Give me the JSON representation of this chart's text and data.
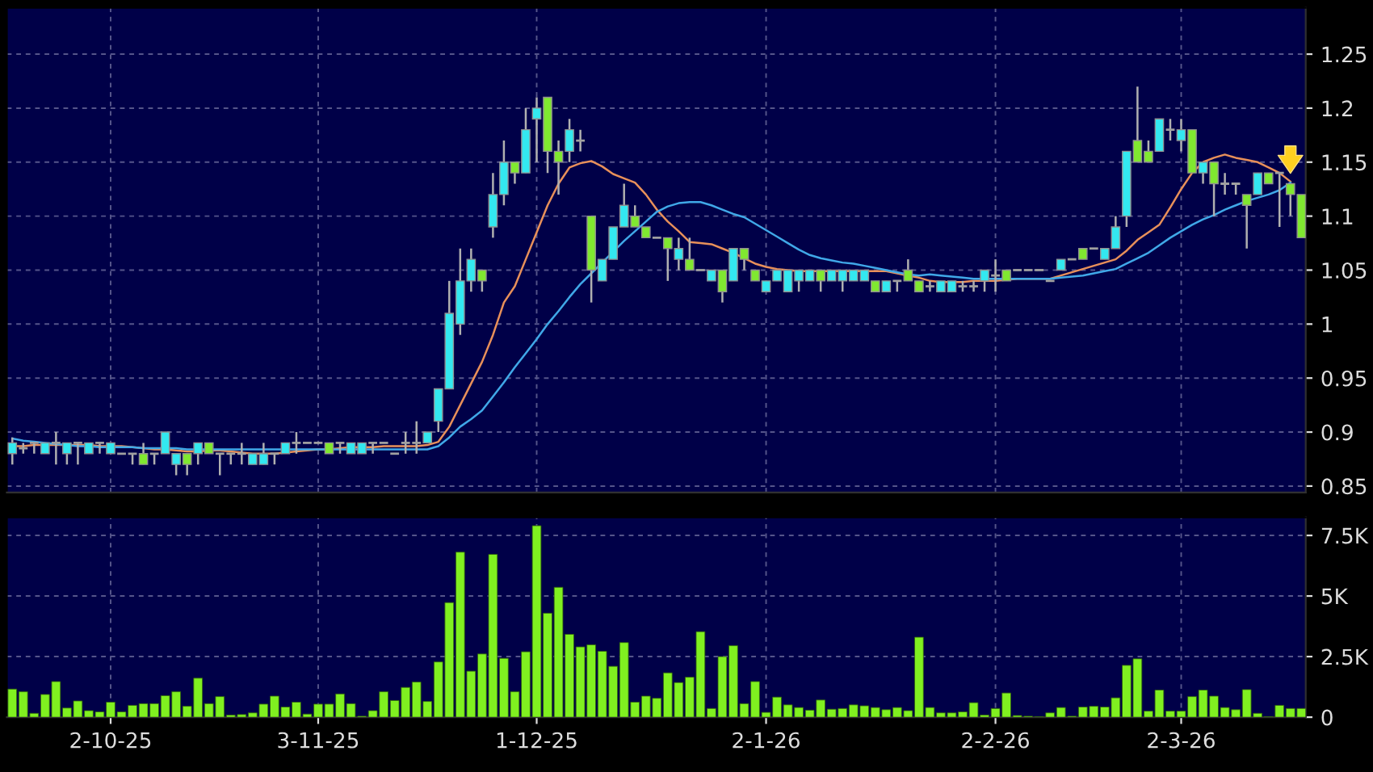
{
  "chart_data": [
    {
      "type": "candlestick",
      "categories": [
        null,
        null,
        null,
        null,
        null,
        null,
        null,
        null,
        null,
        null,
        null,
        null,
        null,
        null,
        null,
        null,
        null,
        null,
        null,
        null,
        null,
        null,
        null,
        null,
        null,
        null,
        null,
        null,
        null,
        null,
        null,
        null,
        null,
        null,
        null,
        null,
        null,
        null,
        null,
        null,
        null,
        null,
        null,
        null,
        null,
        null,
        null,
        null,
        null,
        null,
        null,
        null,
        null,
        null,
        null,
        null,
        null,
        null,
        null,
        null,
        null,
        null,
        null,
        null,
        null,
        null,
        null,
        null,
        null,
        null,
        null,
        null,
        null,
        null,
        null,
        null,
        null,
        null,
        null,
        null,
        null,
        null,
        null,
        null,
        null,
        null,
        null,
        null,
        null,
        null,
        null,
        null,
        null,
        null,
        null,
        null,
        null,
        null,
        null,
        null,
        null,
        null,
        null,
        null,
        null,
        null,
        null,
        null,
        null,
        null,
        null,
        null,
        null,
        null,
        null,
        null,
        null,
        null,
        null
      ],
      "ohlc": [
        [
          0.88,
          0.895,
          0.87,
          0.89
        ],
        [
          0.885,
          0.89,
          0.88,
          0.885
        ],
        [
          0.89,
          0.89,
          0.88,
          0.89
        ],
        [
          0.88,
          0.89,
          0.88,
          0.89
        ],
        [
          0.89,
          0.9,
          0.87,
          0.89
        ],
        [
          0.88,
          0.89,
          0.87,
          0.89
        ],
        [
          0.89,
          0.89,
          0.87,
          0.89
        ],
        [
          0.88,
          0.89,
          0.88,
          0.89
        ],
        [
          0.89,
          0.89,
          0.88,
          0.89
        ],
        [
          0.88,
          0.89,
          0.88,
          0.89
        ],
        [
          0.88,
          0.88,
          0.88,
          0.88
        ],
        [
          0.88,
          0.88,
          0.87,
          0.88
        ],
        [
          0.88,
          0.89,
          0.87,
          0.87
        ],
        [
          0.88,
          0.88,
          0.87,
          0.88
        ],
        [
          0.88,
          0.9,
          0.88,
          0.9
        ],
        [
          0.87,
          0.88,
          0.86,
          0.88
        ],
        [
          0.88,
          0.88,
          0.86,
          0.87
        ],
        [
          0.88,
          0.89,
          0.87,
          0.89
        ],
        [
          0.89,
          0.89,
          0.88,
          0.88
        ],
        [
          0.88,
          0.88,
          0.86,
          0.88
        ],
        [
          0.88,
          0.88,
          0.87,
          0.88
        ],
        [
          0.88,
          0.89,
          0.87,
          0.88
        ],
        [
          0.87,
          0.88,
          0.87,
          0.88
        ],
        [
          0.87,
          0.89,
          0.87,
          0.88
        ],
        [
          0.88,
          0.88,
          0.87,
          0.88
        ],
        [
          0.88,
          0.89,
          0.88,
          0.89
        ],
        [
          0.89,
          0.9,
          0.88,
          0.89
        ],
        [
          0.89,
          0.89,
          0.89,
          0.89
        ],
        [
          0.89,
          0.89,
          0.89,
          0.89
        ],
        [
          0.89,
          0.89,
          0.88,
          0.88
        ],
        [
          0.89,
          0.89,
          0.88,
          0.89
        ],
        [
          0.88,
          0.89,
          0.88,
          0.89
        ],
        [
          0.88,
          0.89,
          0.88,
          0.89
        ],
        [
          0.89,
          0.89,
          0.88,
          0.89
        ],
        [
          0.89,
          0.89,
          0.89,
          0.89
        ],
        [
          0.88,
          0.88,
          0.88,
          0.88
        ],
        [
          0.89,
          0.9,
          0.88,
          0.89
        ],
        [
          0.89,
          0.91,
          0.88,
          0.89
        ],
        [
          0.89,
          0.9,
          0.89,
          0.9
        ],
        [
          0.91,
          0.94,
          0.9,
          0.94
        ],
        [
          0.94,
          1.04,
          0.94,
          1.01
        ],
        [
          1.0,
          1.07,
          0.99,
          1.04
        ],
        [
          1.04,
          1.07,
          1.03,
          1.06
        ],
        [
          1.05,
          1.05,
          1.03,
          1.04
        ],
        [
          1.09,
          1.14,
          1.08,
          1.12
        ],
        [
          1.12,
          1.17,
          1.11,
          1.15
        ],
        [
          1.15,
          1.15,
          1.13,
          1.14
        ],
        [
          1.14,
          1.2,
          1.14,
          1.18
        ],
        [
          1.19,
          1.21,
          1.15,
          1.2
        ],
        [
          1.21,
          1.21,
          1.14,
          1.16
        ],
        [
          1.16,
          1.17,
          1.12,
          1.15
        ],
        [
          1.16,
          1.19,
          1.15,
          1.18
        ],
        [
          1.17,
          1.18,
          1.16,
          1.17
        ],
        [
          1.1,
          1.1,
          1.02,
          1.05
        ],
        [
          1.04,
          1.06,
          1.04,
          1.06
        ],
        [
          1.06,
          1.09,
          1.06,
          1.09
        ],
        [
          1.09,
          1.13,
          1.09,
          1.11
        ],
        [
          1.1,
          1.11,
          1.09,
          1.09
        ],
        [
          1.09,
          1.09,
          1.08,
          1.08
        ],
        [
          1.08,
          1.08,
          1.08,
          1.08
        ],
        [
          1.08,
          1.08,
          1.04,
          1.07
        ],
        [
          1.06,
          1.08,
          1.05,
          1.07
        ],
        [
          1.06,
          1.08,
          1.05,
          1.05
        ],
        [
          1.05,
          1.05,
          1.05,
          1.05
        ],
        [
          1.04,
          1.05,
          1.04,
          1.05
        ],
        [
          1.05,
          1.05,
          1.02,
          1.03
        ],
        [
          1.04,
          1.07,
          1.04,
          1.07
        ],
        [
          1.07,
          1.07,
          1.05,
          1.06
        ],
        [
          1.05,
          1.05,
          1.04,
          1.04
        ],
        [
          1.03,
          1.04,
          1.03,
          1.04
        ],
        [
          1.04,
          1.05,
          1.04,
          1.05
        ],
        [
          1.03,
          1.05,
          1.03,
          1.05
        ],
        [
          1.04,
          1.05,
          1.03,
          1.05
        ],
        [
          1.04,
          1.05,
          1.04,
          1.05
        ],
        [
          1.05,
          1.05,
          1.03,
          1.04
        ],
        [
          1.04,
          1.05,
          1.04,
          1.05
        ],
        [
          1.04,
          1.05,
          1.03,
          1.05
        ],
        [
          1.04,
          1.05,
          1.04,
          1.05
        ],
        [
          1.04,
          1.05,
          1.04,
          1.05
        ],
        [
          1.04,
          1.04,
          1.03,
          1.03
        ],
        [
          1.03,
          1.04,
          1.03,
          1.04
        ],
        [
          1.04,
          1.04,
          1.03,
          1.04
        ],
        [
          1.05,
          1.06,
          1.04,
          1.04
        ],
        [
          1.04,
          1.04,
          1.03,
          1.03
        ],
        [
          1.035,
          1.04,
          1.03,
          1.035
        ],
        [
          1.03,
          1.04,
          1.03,
          1.04
        ],
        [
          1.03,
          1.04,
          1.03,
          1.04
        ],
        [
          1.035,
          1.04,
          1.03,
          1.035
        ],
        [
          1.035,
          1.04,
          1.03,
          1.035
        ],
        [
          1.04,
          1.05,
          1.03,
          1.05
        ],
        [
          1.045,
          1.06,
          1.03,
          1.045
        ],
        [
          1.05,
          1.05,
          1.04,
          1.04
        ],
        [
          1.05,
          1.05,
          1.05,
          1.05
        ],
        [
          1.05,
          1.05,
          1.05,
          1.05
        ],
        [
          1.05,
          1.05,
          1.05,
          1.05
        ],
        [
          1.04,
          1.04,
          1.04,
          1.04
        ],
        [
          1.05,
          1.06,
          1.05,
          1.06
        ],
        [
          1.06,
          1.06,
          1.06,
          1.06
        ],
        [
          1.07,
          1.07,
          1.06,
          1.06
        ],
        [
          1.07,
          1.07,
          1.07,
          1.07
        ],
        [
          1.06,
          1.07,
          1.06,
          1.07
        ],
        [
          1.07,
          1.1,
          1.07,
          1.09
        ],
        [
          1.1,
          1.16,
          1.09,
          1.16
        ],
        [
          1.17,
          1.22,
          1.15,
          1.15
        ],
        [
          1.16,
          1.17,
          1.15,
          1.15
        ],
        [
          1.16,
          1.19,
          1.16,
          1.19
        ],
        [
          1.18,
          1.19,
          1.17,
          1.18
        ],
        [
          1.17,
          1.19,
          1.16,
          1.18
        ],
        [
          1.18,
          1.18,
          1.14,
          1.14
        ],
        [
          1.14,
          1.15,
          1.13,
          1.15
        ],
        [
          1.15,
          1.15,
          1.1,
          1.13
        ],
        [
          1.13,
          1.14,
          1.12,
          1.13
        ],
        [
          1.13,
          1.13,
          1.12,
          1.13
        ],
        [
          1.12,
          1.12,
          1.07,
          1.11
        ],
        [
          1.12,
          1.14,
          1.12,
          1.14
        ],
        [
          1.14,
          1.14,
          1.13,
          1.13
        ],
        [
          1.14,
          1.14,
          1.09,
          1.14
        ],
        [
          1.13,
          1.13,
          1.1,
          1.12
        ],
        [
          1.12,
          1.12,
          1.08,
          1.08
        ]
      ],
      "colors": [
        "#33e8f0",
        "#a0a0a0",
        "#a0a0a0",
        "#33e8f0",
        "#a0a0a0",
        "#33e8f0",
        "#a0a0a0",
        "#33e8f0",
        "#a0a0a0",
        "#33e8f0",
        "#a0a0a0",
        "#a0a0a0",
        "#80e830",
        "#a0a0a0",
        "#33e8f0",
        "#33e8f0",
        "#80e830",
        "#33e8f0",
        "#80e830",
        "#a0a0a0",
        "#a0a0a0",
        "#a0a0a0",
        "#33e8f0",
        "#33e8f0",
        "#a0a0a0",
        "#33e8f0",
        "#a0a0a0",
        "#a0a0a0",
        "#a0a0a0",
        "#80e830",
        "#a0a0a0",
        "#33e8f0",
        "#33e8f0",
        "#a0a0a0",
        "#a0a0a0",
        "#a0a0a0",
        "#a0a0a0",
        "#a0a0a0",
        "#33e8f0",
        "#33e8f0",
        "#33e8f0",
        "#33e8f0",
        "#33e8f0",
        "#80e830",
        "#33e8f0",
        "#33e8f0",
        "#80e830",
        "#33e8f0",
        "#33e8f0",
        "#80e830",
        "#80e830",
        "#33e8f0",
        "#a0a0a0",
        "#80e830",
        "#33e8f0",
        "#33e8f0",
        "#33e8f0",
        "#80e830",
        "#80e830",
        "#a0a0a0",
        "#80e830",
        "#33e8f0",
        "#80e830",
        "#a0a0a0",
        "#33e8f0",
        "#80e830",
        "#33e8f0",
        "#80e830",
        "#80e830",
        "#33e8f0",
        "#33e8f0",
        "#33e8f0",
        "#33e8f0",
        "#33e8f0",
        "#80e830",
        "#33e8f0",
        "#33e8f0",
        "#33e8f0",
        "#33e8f0",
        "#80e830",
        "#33e8f0",
        "#a0a0a0",
        "#80e830",
        "#80e830",
        "#a0a0a0",
        "#33e8f0",
        "#33e8f0",
        "#a0a0a0",
        "#a0a0a0",
        "#33e8f0",
        "#a0a0a0",
        "#80e830",
        "#a0a0a0",
        "#a0a0a0",
        "#a0a0a0",
        "#a0a0a0",
        "#33e8f0",
        "#a0a0a0",
        "#80e830",
        "#a0a0a0",
        "#33e8f0",
        "#33e8f0",
        "#33e8f0",
        "#80e830",
        "#80e830",
        "#33e8f0",
        "#a0a0a0",
        "#33e8f0",
        "#80e830",
        "#33e8f0",
        "#80e830",
        "#a0a0a0",
        "#a0a0a0",
        "#80e830",
        "#33e8f0",
        "#80e830",
        "#a0a0a0",
        "#80e830",
        "#80e830"
      ],
      "series": [
        {
          "type": "line",
          "color": "#e8905a",
          "values": [
            0.887,
            0.887,
            0.888,
            0.888,
            0.888,
            0.888,
            0.888,
            0.888,
            0.887,
            0.887,
            0.887,
            0.886,
            0.885,
            0.884,
            0.884,
            0.883,
            0.882,
            0.882,
            0.883,
            0.883,
            0.882,
            0.881,
            0.88,
            0.88,
            0.88,
            0.881,
            0.882,
            0.883,
            0.884,
            0.884,
            0.885,
            0.886,
            0.886,
            0.886,
            0.887,
            0.887,
            0.887,
            0.887,
            0.888,
            0.891,
            0.905,
            0.925,
            0.945,
            0.965,
            0.99,
            1.02,
            1.035,
            1.06,
            1.085,
            1.11,
            1.13,
            1.145,
            1.149,
            1.151,
            1.146,
            1.139,
            1.135,
            1.131,
            1.12,
            1.106,
            1.095,
            1.086,
            1.076,
            1.075,
            1.074,
            1.07,
            1.066,
            1.061,
            1.056,
            1.053,
            1.051,
            1.05,
            1.049,
            1.049,
            1.049,
            1.049,
            1.049,
            1.049,
            1.049,
            1.049,
            1.049,
            1.047,
            1.045,
            1.043,
            1.04,
            1.039,
            1.039,
            1.039,
            1.04,
            1.04,
            1.04,
            1.041,
            1.042,
            1.042,
            1.042,
            1.042,
            1.045,
            1.048,
            1.051,
            1.054,
            1.057,
            1.06,
            1.068,
            1.078,
            1.085,
            1.092,
            1.108,
            1.125,
            1.14,
            1.15,
            1.154,
            1.157,
            1.154,
            1.152,
            1.15,
            1.145,
            1.14,
            1.132,
            null
          ]
        },
        {
          "type": "line",
          "color": "#40a8e8",
          "values": [
            0.894,
            0.892,
            0.891,
            0.89,
            0.889,
            0.888,
            0.887,
            0.887,
            0.886,
            0.886,
            0.886,
            0.886,
            0.885,
            0.885,
            0.885,
            0.885,
            0.884,
            0.884,
            0.884,
            0.884,
            0.884,
            0.884,
            0.884,
            0.884,
            0.884,
            0.884,
            0.884,
            0.884,
            0.884,
            0.884,
            0.884,
            0.884,
            0.884,
            0.884,
            0.884,
            0.884,
            0.884,
            0.884,
            0.884,
            0.887,
            0.895,
            0.905,
            0.912,
            0.92,
            0.933,
            0.946,
            0.96,
            0.973,
            0.986,
            1.0,
            1.012,
            1.025,
            1.037,
            1.047,
            1.057,
            1.067,
            1.077,
            1.086,
            1.095,
            1.104,
            1.109,
            1.112,
            1.113,
            1.113,
            1.11,
            1.106,
            1.102,
            1.099,
            1.093,
            1.087,
            1.081,
            1.075,
            1.069,
            1.064,
            1.061,
            1.059,
            1.057,
            1.056,
            1.054,
            1.052,
            1.05,
            1.048,
            1.046,
            1.045,
            1.046,
            1.045,
            1.044,
            1.043,
            1.042,
            1.042,
            1.042,
            1.042,
            1.042,
            1.042,
            1.042,
            1.042,
            1.043,
            1.044,
            1.045,
            1.047,
            1.049,
            1.051,
            1.056,
            1.061,
            1.066,
            1.073,
            1.08,
            1.086,
            1.092,
            1.097,
            1.101,
            1.106,
            1.11,
            1.114,
            1.117,
            1.12,
            1.124,
            1.131,
            null
          ]
        }
      ],
      "ylim": [
        0.844,
        1.293
      ],
      "yticks": [
        0.85,
        0.9,
        0.95,
        1,
        1.05,
        1.1,
        1.15,
        1.2,
        1.25
      ],
      "grid": true,
      "tick_labels": "y"
    },
    {
      "type": "bar",
      "categories": [
        null,
        null,
        null,
        null,
        null,
        null,
        null,
        null,
        null,
        "2-10-25",
        null,
        null,
        null,
        null,
        null,
        null,
        null,
        null,
        null,
        null,
        null,
        null,
        null,
        null,
        null,
        null,
        null,
        null,
        "3-11-25",
        null,
        null,
        null,
        null,
        null,
        null,
        null,
        null,
        null,
        null,
        null,
        null,
        null,
        null,
        null,
        null,
        null,
        null,
        null,
        "1-12-25",
        null,
        null,
        null,
        null,
        null,
        null,
        null,
        null,
        null,
        null,
        null,
        null,
        null,
        null,
        null,
        null,
        null,
        null,
        null,
        null,
        "2-1-26",
        null,
        null,
        null,
        null,
        null,
        null,
        null,
        null,
        null,
        null,
        null,
        null,
        null,
        null,
        null,
        null,
        null,
        null,
        null,
        null,
        "2-2-26",
        null,
        null,
        null,
        null,
        null,
        null,
        null,
        null,
        null,
        null,
        null,
        null,
        null,
        null,
        null,
        null,
        "2-3-26",
        null,
        null,
        null,
        null,
        null,
        null,
        null,
        null,
        null,
        null,
        null
      ],
      "values": [
        1.16,
        1.05,
        0.16,
        0.94,
        1.47,
        0.38,
        0.67,
        0.27,
        0.22,
        0.62,
        0.22,
        0.49,
        0.56,
        0.56,
        0.89,
        1.05,
        0.45,
        1.61,
        0.56,
        0.85,
        0.09,
        0.11,
        0.18,
        0.54,
        0.87,
        0.42,
        0.62,
        0.13,
        0.54,
        0.54,
        0.96,
        0.56,
        0.04,
        0.27,
        1.05,
        0.69,
        1.23,
        1.45,
        0.65,
        2.28,
        4.73,
        6.81,
        1.9,
        2.61,
        6.72,
        2.43,
        1.05,
        2.7,
        7.9,
        4.29,
        5.36,
        3.42,
        2.9,
        2.99,
        2.72,
        2.1,
        3.08,
        0.62,
        0.87,
        0.78,
        1.83,
        1.43,
        1.65,
        3.53,
        0.36,
        2.5,
        2.95,
        0.56,
        1.47,
        0.2,
        0.83,
        0.51,
        0.4,
        0.29,
        0.71,
        0.33,
        0.36,
        0.51,
        0.47,
        0.4,
        0.31,
        0.4,
        0.27,
        3.3,
        0.4,
        0.18,
        0.18,
        0.22,
        0.6,
        0.09,
        0.36,
        1.0,
        0.07,
        0.04,
        0.02,
        0.18,
        0.4,
        0.04,
        0.42,
        0.45,
        0.42,
        0.8,
        2.14,
        2.41,
        0.25,
        1.12,
        0.25,
        0.25,
        0.85,
        1.12,
        0.87,
        0.4,
        0.31,
        1.14,
        0.16,
        0.02,
        0.49,
        0.36,
        0.36
      ],
      "color": "#80f020",
      "ylim": [
        0,
        8.25
      ],
      "yticks": [
        0,
        {
          "value": 2.5,
          "label": "2.5K"
        },
        {
          "value": 5,
          "label": "5K"
        },
        {
          "value": 7.5,
          "label": "7.5K"
        }
      ],
      "grid": true
    }
  ]
}
